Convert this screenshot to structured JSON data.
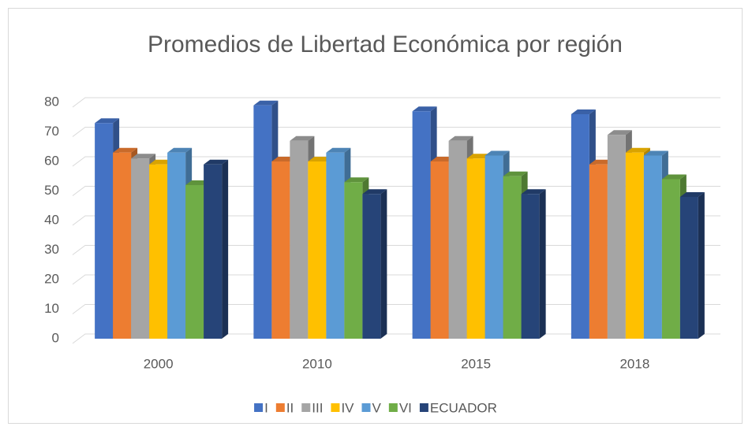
{
  "chart_data": {
    "type": "bar3d",
    "title": "Promedios de Libertad Económica por región",
    "categories": [
      "2000",
      "2010",
      "2015",
      "2018"
    ],
    "series": [
      {
        "name": "I",
        "color": "#4472c4",
        "values": [
          73,
          79,
          77,
          76
        ]
      },
      {
        "name": "II",
        "color": "#ed7d31",
        "values": [
          63,
          60,
          60,
          59
        ]
      },
      {
        "name": "III",
        "color": "#a5a5a5",
        "values": [
          61,
          67,
          67,
          69
        ]
      },
      {
        "name": "IV",
        "color": "#ffc000",
        "values": [
          59,
          60,
          61,
          63
        ]
      },
      {
        "name": "V",
        "color": "#5b9bd5",
        "values": [
          63,
          63,
          62,
          62
        ]
      },
      {
        "name": "VI",
        "color": "#70ad47",
        "values": [
          52,
          53,
          55,
          54
        ]
      },
      {
        "name": "ECUADOR",
        "color": "#264478",
        "values": [
          59,
          49,
          49,
          48
        ]
      }
    ],
    "ylim": [
      0,
      80
    ],
    "yticks": [
      0,
      10,
      20,
      30,
      40,
      50,
      60,
      70,
      80
    ],
    "grid": true,
    "legend": "bottom"
  }
}
